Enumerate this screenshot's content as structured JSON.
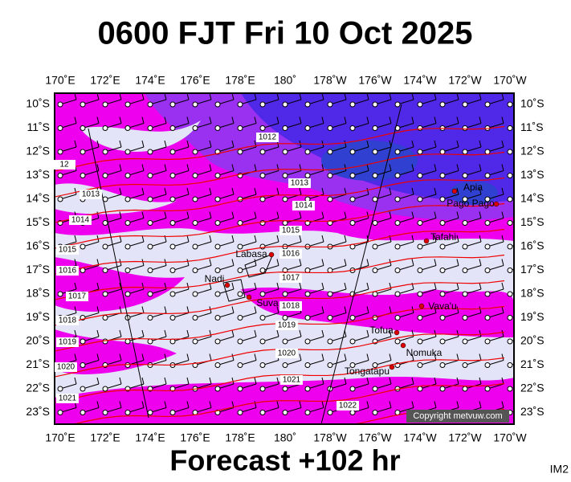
{
  "header": {
    "title": "0600 FJT Fri 10 Oct 2025"
  },
  "map": {
    "longitudes": [
      "170˚E",
      "172˚E",
      "174˚E",
      "176˚E",
      "178˚E",
      "180˚",
      "178˚W",
      "176˚W",
      "174˚W",
      "172˚W",
      "170˚W"
    ],
    "latitudes": [
      "10˚S",
      "11˚S",
      "12˚S",
      "13˚S",
      "14˚S",
      "15˚S",
      "16˚S",
      "17˚S",
      "18˚S",
      "19˚S",
      "20˚S",
      "21˚S",
      "22˚S",
      "23˚S"
    ],
    "isobar_labels": [
      "1012",
      "12",
      "1013",
      "1013",
      "1014",
      "1014",
      "1015",
      "1015",
      "1016",
      "1016",
      "1017",
      "1017",
      "1018",
      "1018",
      "1019",
      "1019",
      "1020",
      "1020",
      "1021",
      "1021",
      "1022"
    ],
    "places": [
      "Apia",
      "Pago Pago",
      "Tafahi",
      "Labasa",
      "Nadi",
      "Suva",
      "Vava'u",
      "Tofua",
      "Nomuka",
      "Tongatapu"
    ],
    "copyright": "Copyright metvuw.com"
  },
  "footer": {
    "forecast": "Forecast +102 hr",
    "code": "IM2"
  }
}
